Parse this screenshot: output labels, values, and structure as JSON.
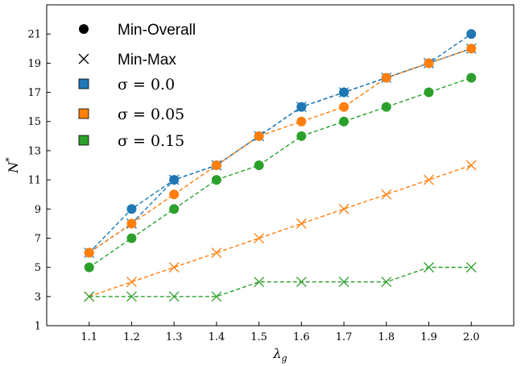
{
  "chart_data": {
    "type": "line",
    "xlabel": "λ",
    "xlabel_sub": "g",
    "ylabel": "N",
    "ylabel_sup": "*",
    "xlim": [
      1.0,
      2.1
    ],
    "ylim": [
      1,
      23
    ],
    "x_ticks": [
      1.1,
      1.2,
      1.3,
      1.4,
      1.5,
      1.6,
      1.7,
      1.8,
      1.9,
      2.0
    ],
    "y_ticks": [
      1,
      3,
      5,
      7,
      9,
      11,
      13,
      15,
      17,
      19,
      21
    ],
    "grid": false,
    "legend": {
      "placement": "top-left",
      "markers": [
        {
          "label": "Min-Overall",
          "marker": "circle"
        },
        {
          "label": "Min-Max",
          "marker": "x"
        }
      ],
      "sigmas": [
        {
          "label": "σ = 0.0",
          "color": "#1f77b4"
        },
        {
          "label": "σ = 0.05",
          "color": "#ff7f0e"
        },
        {
          "label": "σ = 0.15",
          "color": "#2ca02c"
        }
      ]
    },
    "series": [
      {
        "name": "Min-Overall σ = 0.0",
        "marker": "circle",
        "color": "#1f77b4",
        "x": [
          1.1,
          1.2,
          1.3,
          1.4,
          1.5,
          1.6,
          1.7,
          1.8,
          1.9,
          2.0
        ],
        "y": [
          6,
          9,
          11,
          12,
          14,
          16,
          17,
          18,
          19,
          21
        ]
      },
      {
        "name": "Min-Max σ = 0.0",
        "marker": "x",
        "color": "#1f77b4",
        "x": [
          1.1,
          1.2,
          1.3,
          1.4,
          1.5,
          1.6,
          1.7,
          1.8,
          1.9,
          2.0
        ],
        "y": [
          6,
          8,
          11,
          12,
          14,
          16,
          17,
          18,
          19,
          20
        ]
      },
      {
        "name": "Min-Overall σ = 0.05",
        "marker": "circle",
        "color": "#ff7f0e",
        "x": [
          1.1,
          1.2,
          1.3,
          1.4,
          1.5,
          1.6,
          1.7,
          1.8,
          1.9,
          2.0
        ],
        "y": [
          6,
          8,
          10,
          12,
          14,
          15,
          16,
          18,
          19,
          20
        ]
      },
      {
        "name": "Min-Max σ = 0.05",
        "marker": "x",
        "color": "#ff7f0e",
        "x": [
          1.1,
          1.2,
          1.3,
          1.4,
          1.5,
          1.6,
          1.7,
          1.8,
          1.9,
          2.0
        ],
        "y": [
          3,
          4,
          5,
          6,
          7,
          8,
          9,
          10,
          11,
          12
        ]
      },
      {
        "name": "Min-Overall σ = 0.15",
        "marker": "circle",
        "color": "#2ca02c",
        "x": [
          1.1,
          1.2,
          1.3,
          1.4,
          1.5,
          1.6,
          1.7,
          1.8,
          1.9,
          2.0
        ],
        "y": [
          5,
          7,
          9,
          11,
          12,
          14,
          15,
          16,
          17,
          18
        ]
      },
      {
        "name": "Min-Max σ = 0.15",
        "marker": "x",
        "color": "#2ca02c",
        "x": [
          1.1,
          1.2,
          1.3,
          1.4,
          1.5,
          1.6,
          1.7,
          1.8,
          1.9,
          2.0
        ],
        "y": [
          3,
          3,
          3,
          3,
          4,
          4,
          4,
          4,
          5,
          5
        ]
      }
    ]
  }
}
